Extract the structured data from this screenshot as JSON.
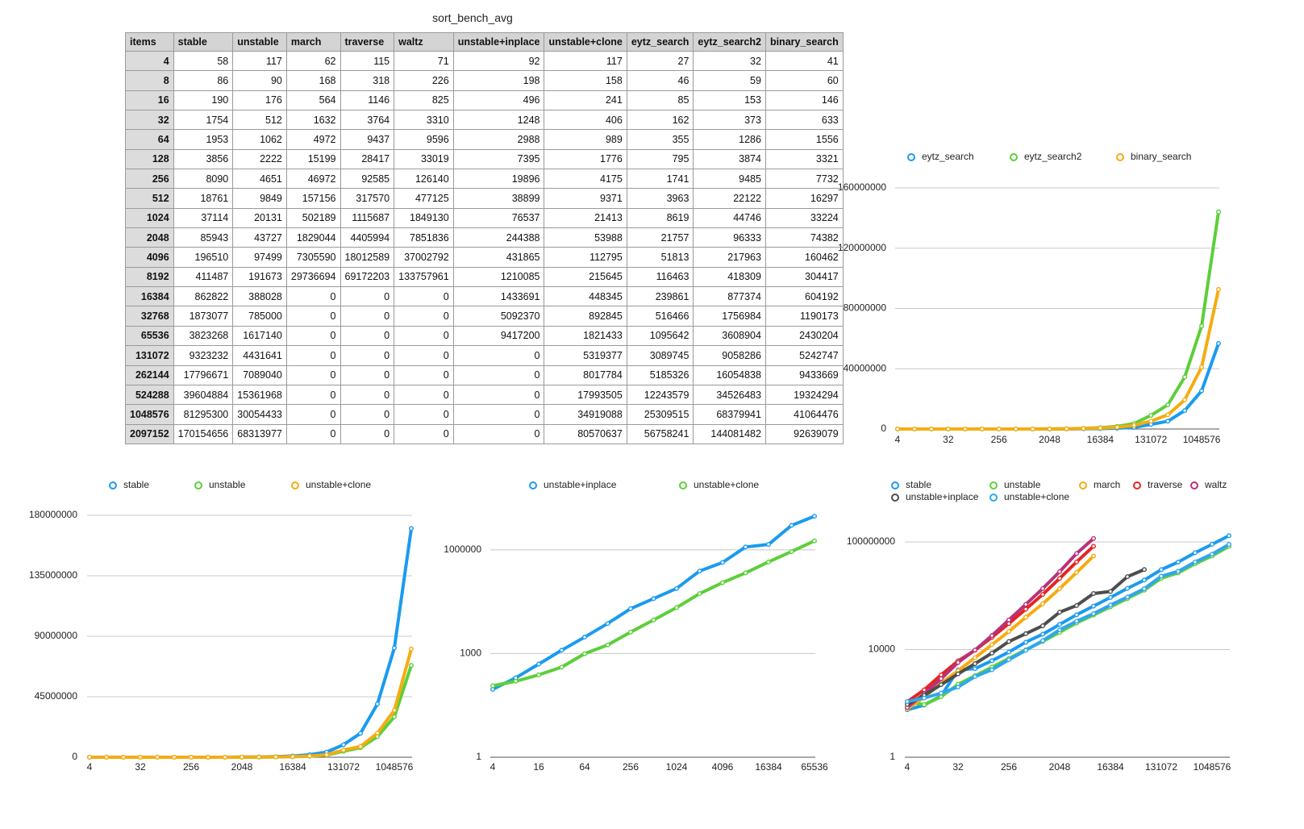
{
  "table": {
    "title": "sort_bench_avg",
    "header": [
      "items",
      "stable",
      "unstable",
      "march",
      "traverse",
      "waltz",
      "unstable+inplace",
      "unstable+clone",
      "eytz_search",
      "eytz_search2",
      "binary_search"
    ],
    "rows": [
      [
        4,
        58,
        117,
        62,
        115,
        71,
        92,
        117,
        27,
        32,
        41
      ],
      [
        8,
        86,
        90,
        168,
        318,
        226,
        198,
        158,
        46,
        59,
        60
      ],
      [
        16,
        190,
        176,
        564,
        1146,
        825,
        496,
        241,
        85,
        153,
        146
      ],
      [
        32,
        1754,
        512,
        1632,
        3764,
        3310,
        1248,
        406,
        162,
        373,
        633
      ],
      [
        64,
        1953,
        1062,
        4972,
        9437,
        9596,
        2988,
        989,
        355,
        1286,
        1556
      ],
      [
        128,
        3856,
        2222,
        15199,
        28417,
        33019,
        7395,
        1776,
        795,
        3874,
        3321
      ],
      [
        256,
        8090,
        4651,
        46972,
        92585,
        126140,
        19896,
        4175,
        1741,
        9485,
        7732
      ],
      [
        512,
        18761,
        9849,
        157156,
        317570,
        477125,
        38899,
        9371,
        3963,
        22122,
        16297
      ],
      [
        1024,
        37114,
        20131,
        502189,
        1115687,
        1849130,
        76537,
        21413,
        8619,
        44746,
        33224
      ],
      [
        2048,
        85943,
        43727,
        1829044,
        4405994,
        7851836,
        244388,
        53988,
        21757,
        96333,
        74382
      ],
      [
        4096,
        196510,
        97499,
        7305590,
        18012589,
        37002792,
        431865,
        112795,
        51813,
        217963,
        160462
      ],
      [
        8192,
        411487,
        191673,
        29736694,
        69172203,
        133757961,
        1210085,
        215645,
        116463,
        418309,
        304417
      ],
      [
        16384,
        862822,
        388028,
        0,
        0,
        0,
        1433691,
        448345,
        239861,
        877374,
        604192
      ],
      [
        32768,
        1873077,
        785000,
        0,
        0,
        0,
        5092370,
        892845,
        516466,
        1756984,
        1190173
      ],
      [
        65536,
        3823268,
        1617140,
        0,
        0,
        0,
        9417200,
        1821433,
        1095642,
        3608904,
        2430204
      ],
      [
        131072,
        9323232,
        4431641,
        0,
        0,
        0,
        0,
        5319377,
        3089745,
        9058286,
        5242747
      ],
      [
        262144,
        17796671,
        7089040,
        0,
        0,
        0,
        0,
        8017784,
        5185326,
        16054838,
        9433669
      ],
      [
        524288,
        39604884,
        15361968,
        0,
        0,
        0,
        0,
        17993505,
        12243579,
        34526483,
        19324294
      ],
      [
        1048576,
        81295300,
        30054433,
        0,
        0,
        0,
        0,
        34919088,
        25309515,
        68379941,
        41064476
      ],
      [
        2097152,
        170154656,
        68313977,
        0,
        0,
        0,
        0,
        80570637,
        56758241,
        144081482,
        92639079
      ]
    ]
  },
  "chart_data": [
    {
      "type": "line",
      "grid": true,
      "log": false,
      "categories": [
        4,
        null,
        null,
        32,
        null,
        null,
        256,
        null,
        null,
        2048,
        null,
        null,
        16384,
        null,
        null,
        131072,
        null,
        null,
        1048576,
        null
      ],
      "ylim": [
        0,
        160000000
      ],
      "yticks": [
        0,
        40000000,
        80000000,
        120000000,
        160000000
      ],
      "series": [
        {
          "name": "eytz_search",
          "color": "#1a9bef",
          "values": [
            27,
            46,
            85,
            162,
            355,
            795,
            1741,
            3963,
            8619,
            21757,
            51813,
            116463,
            239861,
            516466,
            1095642,
            3089745,
            5185326,
            12243579,
            25309515,
            56758241
          ]
        },
        {
          "name": "eytz_search2",
          "color": "#5ccf3a",
          "values": [
            32,
            59,
            153,
            373,
            1286,
            3874,
            9485,
            22122,
            44746,
            96333,
            217963,
            418309,
            877374,
            1756984,
            3608904,
            9058286,
            16054838,
            34526483,
            68379941,
            144081482
          ]
        },
        {
          "name": "binary_search",
          "color": "#f5ac12",
          "values": [
            41,
            60,
            146,
            633,
            1556,
            3321,
            7732,
            16297,
            33224,
            74382,
            160462,
            304417,
            604192,
            1190173,
            2430204,
            5242747,
            9433669,
            19324294,
            41064476,
            92639079
          ]
        }
      ]
    },
    {
      "type": "line",
      "grid": true,
      "log": false,
      "categories": [
        4,
        null,
        null,
        32,
        null,
        null,
        256,
        null,
        null,
        2048,
        null,
        null,
        16384,
        null,
        null,
        131072,
        null,
        null,
        1048576,
        null
      ],
      "ylim": [
        0,
        180000000
      ],
      "yticks": [
        0,
        45000000,
        90000000,
        135000000,
        180000000
      ],
      "series": [
        {
          "name": "stable",
          "color": "#1a9bef",
          "values": [
            58,
            86,
            190,
            1754,
            1953,
            3856,
            8090,
            18761,
            37114,
            85943,
            196510,
            411487,
            862822,
            1873077,
            3823268,
            9323232,
            17796671,
            39604884,
            81295300,
            170154656
          ]
        },
        {
          "name": "unstable",
          "color": "#5ccf3a",
          "values": [
            117,
            90,
            176,
            512,
            1062,
            2222,
            4651,
            9849,
            20131,
            43727,
            97499,
            191673,
            388028,
            785000,
            1617140,
            4431641,
            7089040,
            15361968,
            30054433,
            68313977
          ]
        },
        {
          "name": "unstable+clone",
          "color": "#f5ac12",
          "values": [
            117,
            158,
            241,
            406,
            989,
            1776,
            4175,
            9371,
            21413,
            53988,
            112795,
            215645,
            448345,
            892845,
            1821433,
            5319377,
            8017784,
            17993505,
            34919088,
            80570637
          ]
        }
      ]
    },
    {
      "type": "line",
      "grid": true,
      "log": true,
      "categories": [
        4,
        null,
        16,
        null,
        64,
        null,
        256,
        null,
        1024,
        null,
        4096,
        null,
        16384,
        null,
        65536
      ],
      "ylim": [
        1,
        10000000
      ],
      "yticks": [
        1,
        1000,
        1000000
      ],
      "series": [
        {
          "name": "unstable+inplace",
          "color": "#1a9bef",
          "values": [
            92,
            198,
            496,
            1248,
            2988,
            7395,
            19896,
            38899,
            76537,
            244388,
            431865,
            1210085,
            1433691,
            5092370,
            9417200
          ]
        },
        {
          "name": "unstable+clone",
          "color": "#5ccf3a",
          "values": [
            117,
            158,
            241,
            406,
            989,
            1776,
            4175,
            9371,
            21413,
            53988,
            112795,
            215645,
            448345,
            892845,
            1821433
          ]
        }
      ]
    },
    {
      "type": "line",
      "grid": true,
      "log": true,
      "categories": [
        4,
        null,
        null,
        32,
        null,
        null,
        256,
        null,
        null,
        2048,
        null,
        null,
        16384,
        null,
        null,
        131072,
        null,
        null,
        1048576,
        null
      ],
      "ylim": [
        1,
        1000000000
      ],
      "yticks": [
        1,
        10000,
        100000000
      ],
      "series": [
        {
          "name": "stable",
          "color": "#1a9bef",
          "values": [
            58,
            86,
            190,
            1754,
            1953,
            3856,
            8090,
            18761,
            37114,
            85943,
            196510,
            411487,
            862822,
            1873077,
            3823268,
            9323232,
            17796671,
            39604884,
            81295300,
            170154656
          ]
        },
        {
          "name": "unstable",
          "color": "#5ccf3a",
          "values": [
            117,
            90,
            176,
            512,
            1062,
            2222,
            4651,
            9849,
            20131,
            43727,
            97499,
            191673,
            388028,
            785000,
            1617140,
            4431641,
            7089040,
            15361968,
            30054433,
            68313977
          ]
        },
        {
          "name": "march",
          "color": "#f5ac12",
          "values": [
            62,
            168,
            564,
            1632,
            4972,
            15199,
            46972,
            157156,
            502189,
            1829044,
            7305590,
            29736694,
            null,
            null,
            null,
            null,
            null,
            null,
            null,
            null
          ]
        },
        {
          "name": "traverse",
          "color": "#e52421",
          "values": [
            115,
            318,
            1146,
            3764,
            9437,
            28417,
            92585,
            317570,
            1115687,
            4405994,
            18012589,
            69172203,
            null,
            null,
            null,
            null,
            null,
            null,
            null,
            null
          ]
        },
        {
          "name": "waltz",
          "color": "#b8327a",
          "values": [
            71,
            226,
            825,
            3310,
            9596,
            33019,
            126140,
            477125,
            1849130,
            7851836,
            37002792,
            133757961,
            null,
            null,
            null,
            null,
            null,
            null,
            null,
            null
          ]
        },
        {
          "name": "unstable+inplace",
          "color": "#4d4d4d",
          "values": [
            92,
            198,
            496,
            1248,
            2988,
            7395,
            19896,
            38899,
            76537,
            244388,
            431865,
            1210085,
            1433691,
            5092370,
            9417200,
            null,
            null,
            null,
            null,
            null
          ]
        },
        {
          "name": "unstable+clone",
          "color": "#2fa6ee",
          "values": [
            117,
            158,
            241,
            406,
            989,
            1776,
            4175,
            9371,
            21413,
            53988,
            112795,
            215645,
            448345,
            892845,
            1821433,
            5319377,
            8017784,
            17993505,
            34919088,
            80570637
          ]
        }
      ]
    }
  ]
}
